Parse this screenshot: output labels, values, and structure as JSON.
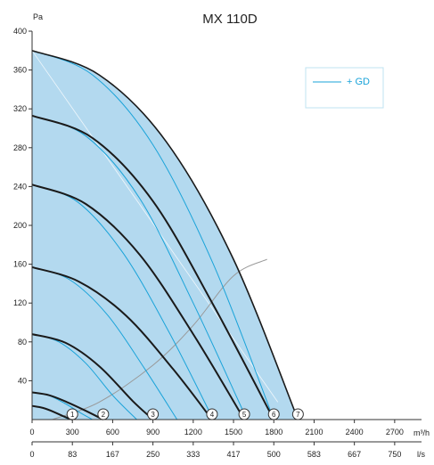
{
  "chart_data": {
    "type": "line",
    "title": "MX 110D",
    "ylabel": "Pa",
    "x_unit_primary": "m³/h",
    "x_unit_secondary": "l/s",
    "xlim": [
      0,
      2900
    ],
    "ylim": [
      0,
      400
    ],
    "y_ticks": [
      40,
      80,
      120,
      160,
      200,
      240,
      280,
      320,
      360,
      400
    ],
    "x_ticks_primary": [
      "0",
      "300",
      "600",
      "900",
      "1200",
      "1500",
      "1800",
      "2100",
      "2400",
      "2700"
    ],
    "x_ticks_secondary": [
      "0",
      "83",
      "167",
      "250",
      "333",
      "417",
      "500",
      "583",
      "667",
      "750"
    ],
    "legend": {
      "label": "+ GD",
      "placement": "top-right"
    },
    "colors": {
      "fill": "#b3d9ef",
      "black_curve": "#1a1a1a",
      "blue_curve": "#1aa3d9",
      "system_curve": "#999999",
      "axis": "#333333"
    },
    "speed_curves": [
      {
        "label": "1",
        "x": [
          0,
          80,
          160,
          240,
          300
        ],
        "y": [
          14,
          12,
          8,
          3,
          0
        ]
      },
      {
        "label": "2",
        "x": [
          0,
          130,
          260,
          400,
          530
        ],
        "y": [
          28,
          25,
          18,
          9,
          0
        ]
      },
      {
        "label": "3",
        "x": [
          0,
          250,
          500,
          750,
          900
        ],
        "y": [
          88,
          79,
          55,
          19,
          0
        ]
      },
      {
        "label": "4",
        "x": [
          0,
          350,
          700,
          1050,
          1340
        ],
        "y": [
          157,
          142,
          107,
          52,
          0
        ]
      },
      {
        "label": "5",
        "x": [
          0,
          400,
          800,
          1200,
          1580
        ],
        "y": [
          242,
          222,
          170,
          88,
          0
        ]
      },
      {
        "label": "6",
        "x": [
          0,
          450,
          900,
          1350,
          1800
        ],
        "y": [
          313,
          290,
          225,
          118,
          0
        ]
      },
      {
        "label": "7",
        "x": [
          0,
          500,
          1000,
          1500,
          1980
        ],
        "y": [
          380,
          355,
          286,
          165,
          0
        ]
      }
    ],
    "gd_curves": [
      {
        "x": [
          0,
          80,
          160,
          230,
          280
        ],
        "y": [
          14,
          12,
          8,
          3,
          0
        ]
      },
      {
        "x": [
          0,
          120,
          240,
          360,
          450
        ],
        "y": [
          28,
          25,
          17,
          7,
          0
        ]
      },
      {
        "x": [
          0,
          200,
          400,
          600,
          780
        ],
        "y": [
          88,
          80,
          58,
          25,
          0
        ]
      },
      {
        "x": [
          0,
          280,
          560,
          840,
          1080
        ],
        "y": [
          157,
          144,
          108,
          52,
          0
        ]
      },
      {
        "x": [
          0,
          340,
          680,
          1020,
          1350
        ],
        "y": [
          242,
          224,
          171,
          90,
          0
        ]
      },
      {
        "x": [
          0,
          400,
          800,
          1200,
          1600
        ],
        "y": [
          313,
          292,
          228,
          120,
          0
        ]
      },
      {
        "x": [
          0,
          450,
          900,
          1350,
          1800
        ],
        "y": [
          380,
          355,
          283,
          160,
          0
        ]
      }
    ],
    "system_curve": {
      "x": [
        150,
        500,
        900,
        1200,
        1500,
        1750
      ],
      "y": [
        0,
        18,
        56,
        97,
        148,
        165
      ]
    }
  }
}
